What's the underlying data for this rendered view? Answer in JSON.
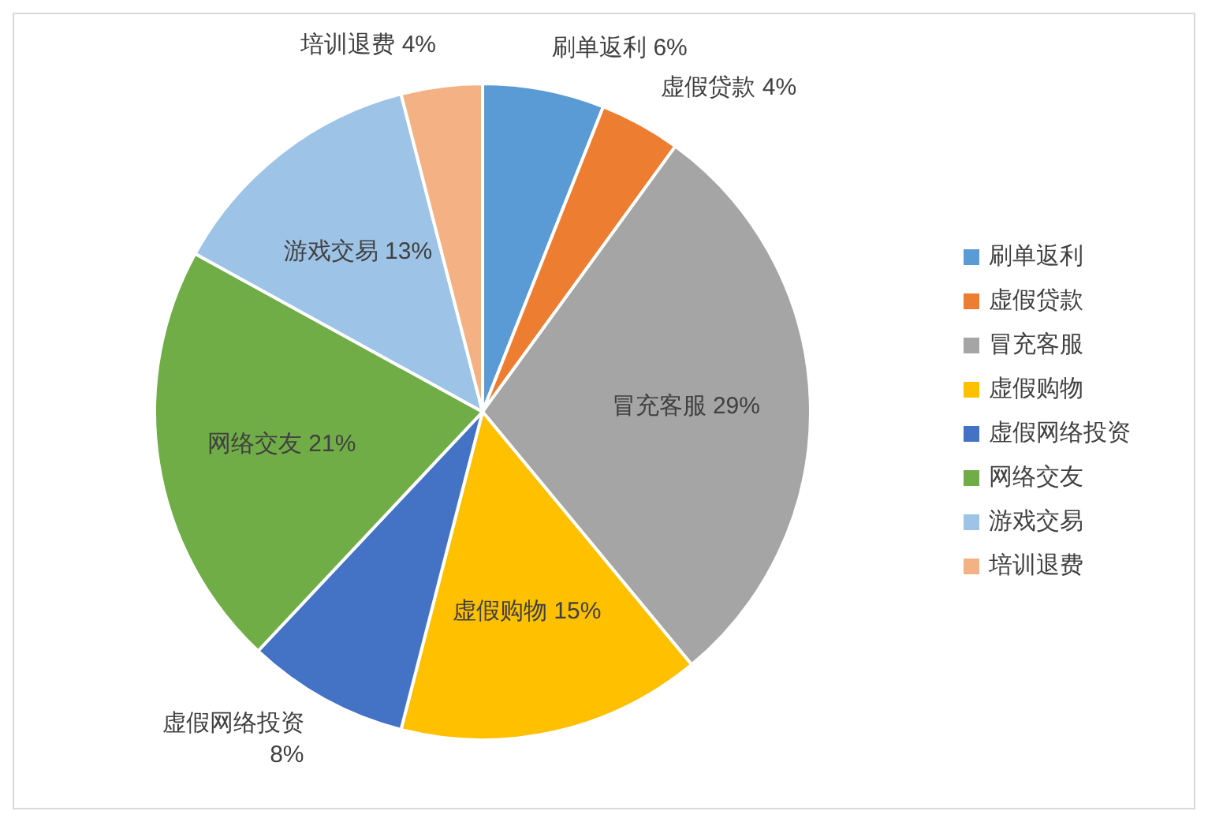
{
  "chart_data": {
    "type": "pie",
    "categories": [
      "刷单返利",
      "虚假贷款",
      "冒充客服",
      "虚假购物",
      "虚假网络投资",
      "网络交友",
      "游戏交易",
      "培训退费"
    ],
    "values": [
      6,
      4,
      29,
      15,
      8,
      21,
      13,
      4
    ],
    "colors": [
      "#5b9bd5",
      "#ed7d31",
      "#a5a5a5",
      "#ffc000",
      "#4472c4",
      "#70ad47",
      "#9dc3e6",
      "#f4b183"
    ],
    "value_labels": [
      "刷单返利 6%",
      "虚假贷款 4%",
      "冒充客服 29%",
      "虚假购物 15%",
      "虚假网络投资\n8%",
      "网络交友 21%",
      "游戏交易 13%",
      "培训退费 4%"
    ],
    "legend": "right"
  }
}
